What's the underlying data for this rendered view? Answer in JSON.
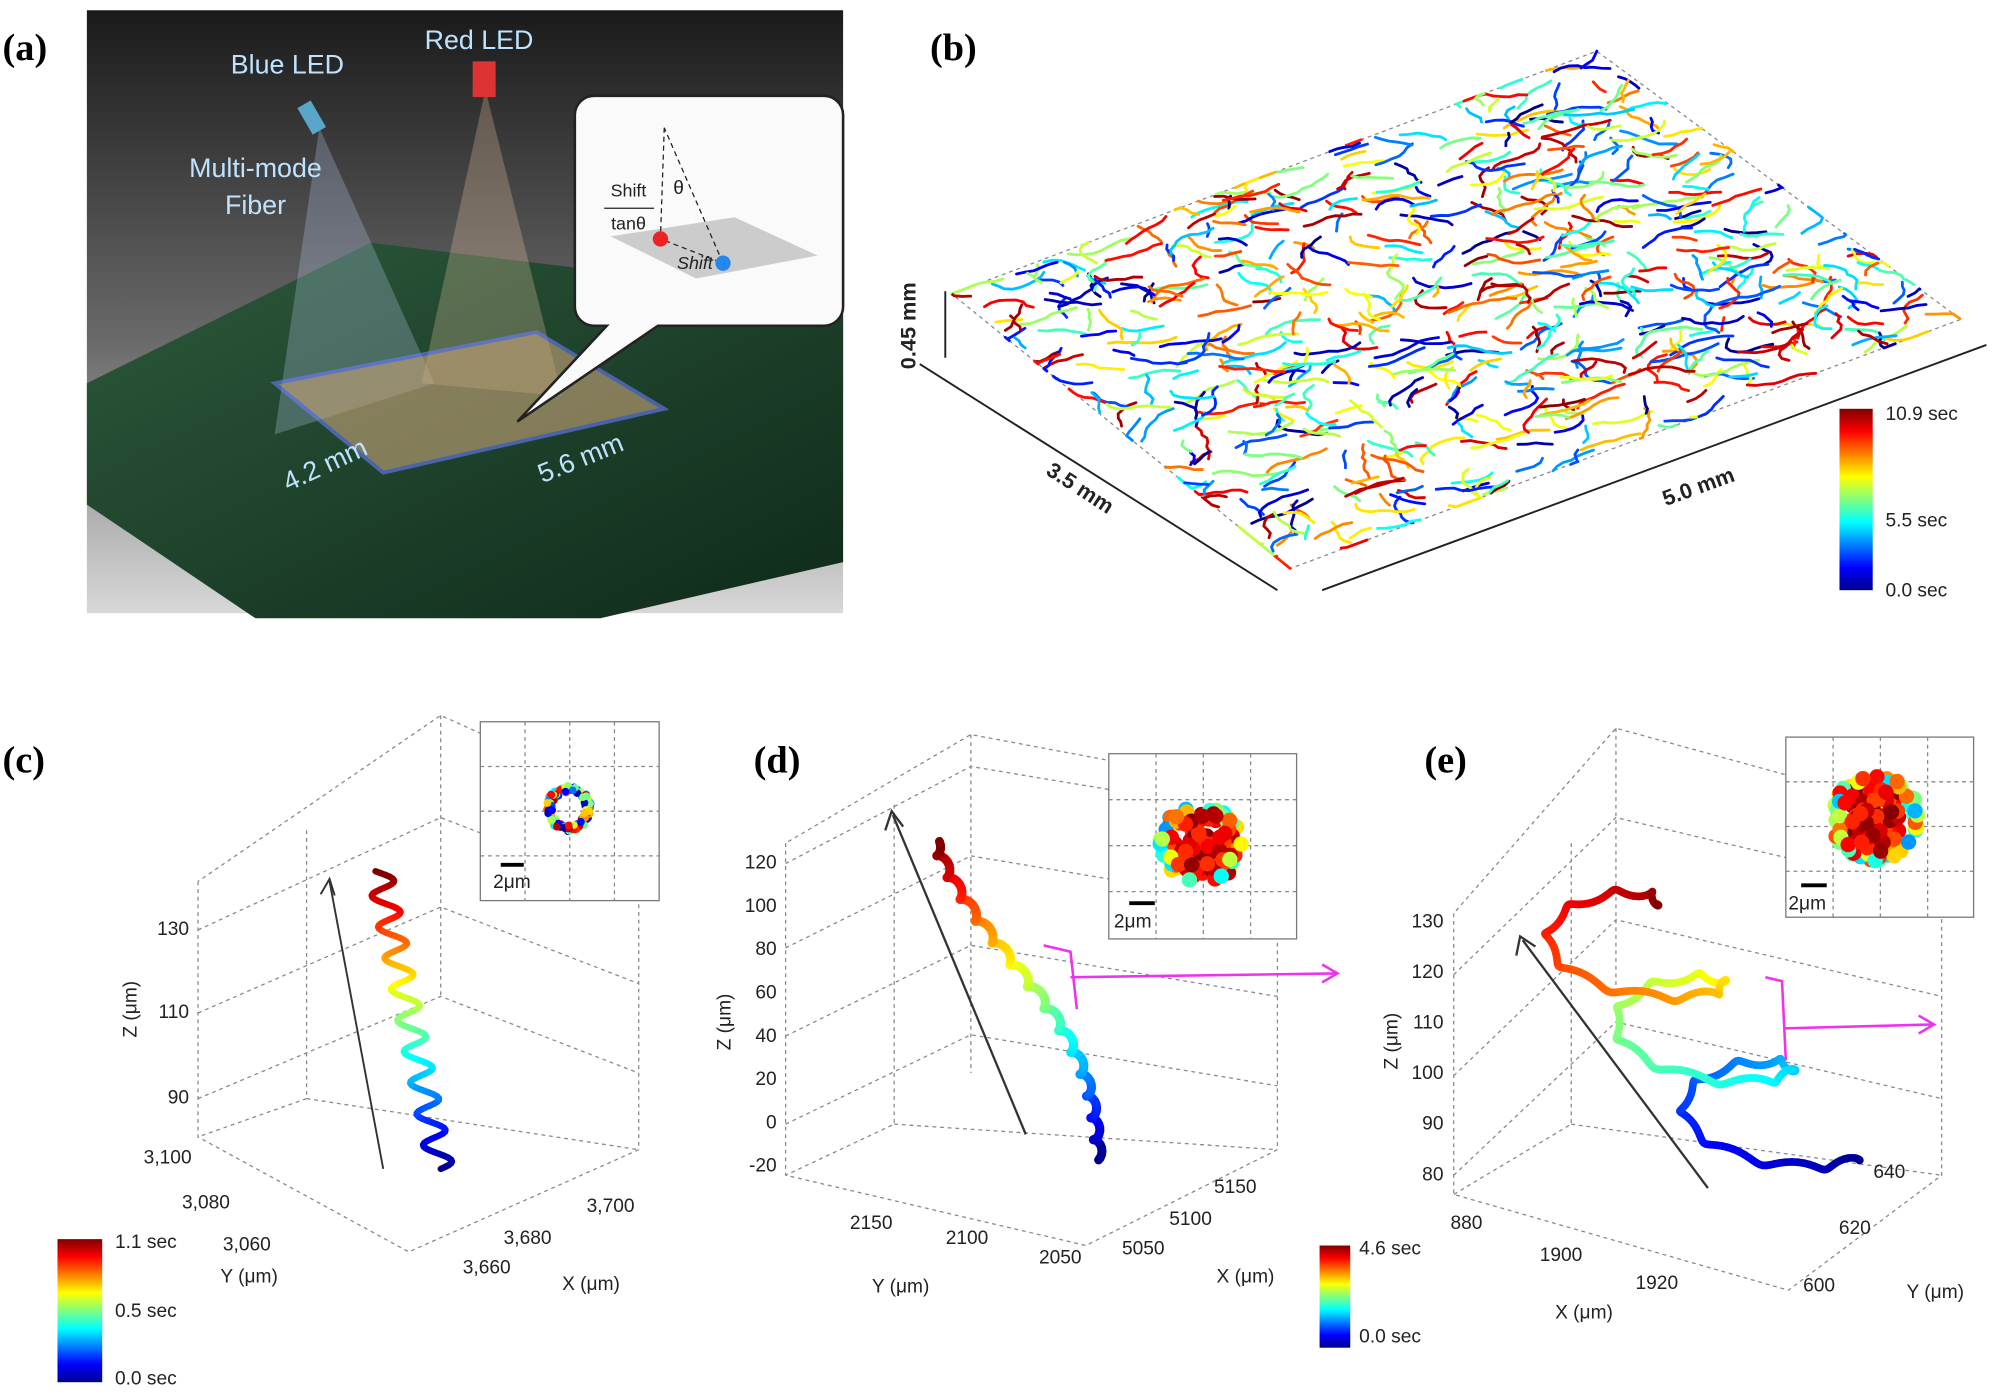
{
  "panel_a": {
    "label": "(a)",
    "blue_led": "Blue LED",
    "red_led": "Red LED",
    "fiber": [
      "Multi-mode",
      "Fiber"
    ],
    "shift_num": "Shift",
    "shift_den": "tanθ",
    "theta": "θ",
    "shift": "Shift",
    "width": "4.2 mm",
    "length": "5.6 mm"
  },
  "panel_b": {
    "label": "(b)",
    "height": "0.45 mm",
    "depth": "3.5 mm",
    "width": "5.0 mm",
    "colorbar": [
      "10.9 sec",
      "5.5 sec",
      "0.0 sec"
    ]
  },
  "panel_c": {
    "label": "(c)",
    "z_ticks": [
      "130",
      "110",
      "90"
    ],
    "z_label": "Z (μm)",
    "y_ticks": [
      "3,100",
      "3,080",
      "3,060"
    ],
    "y_label": "Y (μm)",
    "x_ticks": [
      "3,660",
      "3,680",
      "3,700"
    ],
    "x_label": "X (μm)",
    "colorbar": [
      "1.1 sec",
      "0.5 sec",
      "0.0 sec"
    ],
    "scale_bar": "2μm"
  },
  "panel_d": {
    "label": "(d)",
    "z_ticks": [
      "120",
      "100",
      "80",
      "60",
      "40",
      "20",
      "0",
      "-20"
    ],
    "z_label": "Z (μm)",
    "y_ticks": [
      "2150",
      "2100",
      "2050"
    ],
    "y_label": "Y (μm)",
    "x_ticks": [
      "5050",
      "5100",
      "5150"
    ],
    "x_label": "X (μm)",
    "colorbar": [
      "4.6 sec",
      "0.0 sec"
    ],
    "scale_bar": "2μm"
  },
  "panel_e": {
    "label": "(e)",
    "z_ticks": [
      "130",
      "120",
      "110",
      "100",
      "90",
      "80"
    ],
    "z_label": "Z (μm)",
    "x_ticks": [
      "880",
      "1900",
      "1920"
    ],
    "x_label": "X (μm)",
    "y_ticks": [
      "600",
      "620",
      "640"
    ],
    "y_label": "Y (μm)",
    "scale_bar": "2μm"
  }
}
